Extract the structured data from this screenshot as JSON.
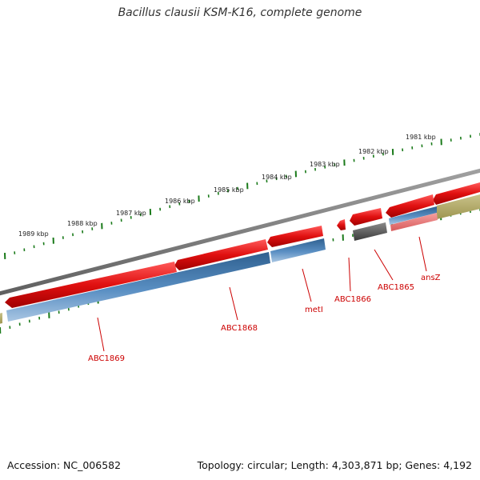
{
  "title": "Bacillus clausii KSM-K16, complete genome",
  "footer": {
    "accession": "Accession: NC_006582",
    "topology": "Topology: circular; Length: 4,303,871 bp; Genes: 4,192"
  },
  "colors": {
    "backbone": "#7a7a7a",
    "gene_red": "#e01010",
    "cds_blue": "#4a7fb3",
    "grey_feature": "#5a5a5a",
    "khaki_feature": "#b8b070",
    "pink_feature": "#e87a7a",
    "tick_green": "#1a7a1a",
    "label_red": "#cc0000"
  },
  "scale_labels": [
    "1981 kbp",
    "1982 kbp",
    "1983 kbp",
    "1984 kbp",
    "1985 kbp",
    "1986 kbp",
    "1987 kbp",
    "1988 kbp",
    "1989 kbp"
  ],
  "gene_labels": [
    "ansZ",
    "ABC1865",
    "ABC1866",
    "metI",
    "ABC1868",
    "ABC1869"
  ]
}
